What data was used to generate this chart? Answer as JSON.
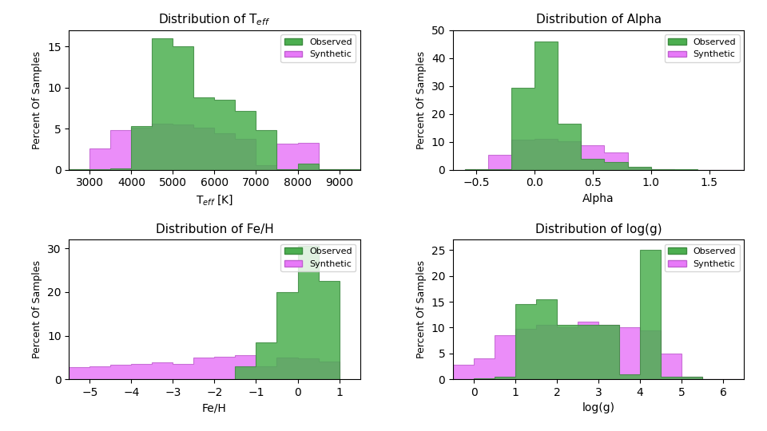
{
  "teff": {
    "title": "Distribution of T$_{eff}$",
    "xlabel": "T$_{eff}$ [K]",
    "obs_bins": [
      2500,
      3000,
      3500,
      4000,
      4500,
      5000,
      5500,
      6000,
      6500,
      7000,
      7500,
      8000,
      8500,
      9500
    ],
    "obs_heights": [
      0.05,
      0.1,
      0.2,
      5.3,
      16.0,
      15.0,
      8.8,
      8.5,
      7.2,
      4.8,
      0.1,
      0.8,
      0.1
    ],
    "syn_bins": [
      2500,
      3000,
      3500,
      4000,
      4500,
      5000,
      5500,
      6000,
      6500,
      7000,
      7500,
      8000,
      8500,
      9500
    ],
    "syn_heights": [
      0.1,
      2.6,
      4.8,
      5.1,
      5.6,
      5.5,
      5.1,
      4.4,
      3.8,
      0.6,
      3.2,
      3.3,
      0.1
    ],
    "ylim": [
      0,
      17
    ],
    "xlim": [
      2500,
      9500
    ]
  },
  "alpha": {
    "title": "Distribution of Alpha",
    "xlabel": "Alpha",
    "obs_bins": [
      -0.6,
      -0.4,
      -0.2,
      0.0,
      0.2,
      0.4,
      0.6,
      0.8,
      1.0,
      1.2,
      1.4,
      1.8
    ],
    "obs_heights": [
      0.1,
      0.2,
      29.5,
      46.0,
      16.5,
      4.0,
      2.8,
      1.0,
      0.1,
      0.1,
      0.0
    ],
    "syn_bins": [
      -0.6,
      -0.4,
      -0.2,
      0.0,
      0.2,
      0.4,
      0.6,
      0.8,
      1.0,
      1.2,
      1.4,
      1.8
    ],
    "syn_heights": [
      0.1,
      5.3,
      10.8,
      11.2,
      10.2,
      8.8,
      6.2,
      0.8,
      0.1,
      0.0,
      0.0
    ],
    "ylim": [
      0,
      50
    ],
    "xlim": [
      -0.7,
      1.8
    ]
  },
  "feh": {
    "title": "Distribution of Fe/H",
    "xlabel": "Fe/H",
    "obs_bins": [
      -5.5,
      -5.0,
      -4.5,
      -4.0,
      -3.5,
      -3.0,
      -2.5,
      -2.0,
      -1.5,
      -1.0,
      -0.5,
      0.0,
      0.5,
      1.0
    ],
    "obs_heights": [
      0.0,
      0.0,
      0.0,
      0.0,
      0.0,
      0.0,
      0.0,
      0.1,
      3.0,
      8.5,
      20.0,
      30.5,
      22.5
    ],
    "syn_bins": [
      -5.5,
      -5.0,
      -4.5,
      -4.0,
      -3.5,
      -3.0,
      -2.5,
      -2.0,
      -1.5,
      -1.0,
      -0.5,
      0.0,
      0.5,
      1.0
    ],
    "syn_heights": [
      2.7,
      2.9,
      3.4,
      3.5,
      3.8,
      3.5,
      5.0,
      5.2,
      5.5,
      3.0,
      5.0,
      4.8,
      4.0
    ],
    "ylim": [
      0,
      32
    ],
    "xlim": [
      -5.5,
      1.5
    ]
  },
  "logg": {
    "title": "Distribution of log(g)",
    "xlabel": "log(g)",
    "obs_bins": [
      -0.5,
      0.0,
      0.5,
      1.0,
      1.5,
      2.0,
      2.5,
      3.0,
      3.5,
      4.0,
      4.5,
      5.0,
      5.5,
      6.5
    ],
    "obs_heights": [
      0.0,
      0.2,
      0.5,
      14.5,
      15.5,
      10.5,
      10.5,
      10.5,
      1.0,
      25.0,
      0.5,
      0.5,
      0.1
    ],
    "syn_bins": [
      -0.5,
      0.0,
      0.5,
      1.0,
      1.5,
      2.0,
      2.5,
      3.0,
      3.5,
      4.0,
      4.5,
      5.0,
      5.5,
      6.5
    ],
    "syn_heights": [
      2.8,
      4.0,
      8.5,
      9.8,
      10.5,
      10.0,
      11.2,
      10.5,
      10.0,
      9.5,
      5.0,
      0.5,
      0.1
    ],
    "ylim": [
      0,
      27
    ],
    "xlim": [
      -0.5,
      6.5
    ]
  },
  "obs_color": "#4caf50",
  "syn_color": "#e879f9",
  "obs_edge": "#3d8b40",
  "syn_edge": "#c060d0",
  "ylabel": "Percent Of Samples"
}
